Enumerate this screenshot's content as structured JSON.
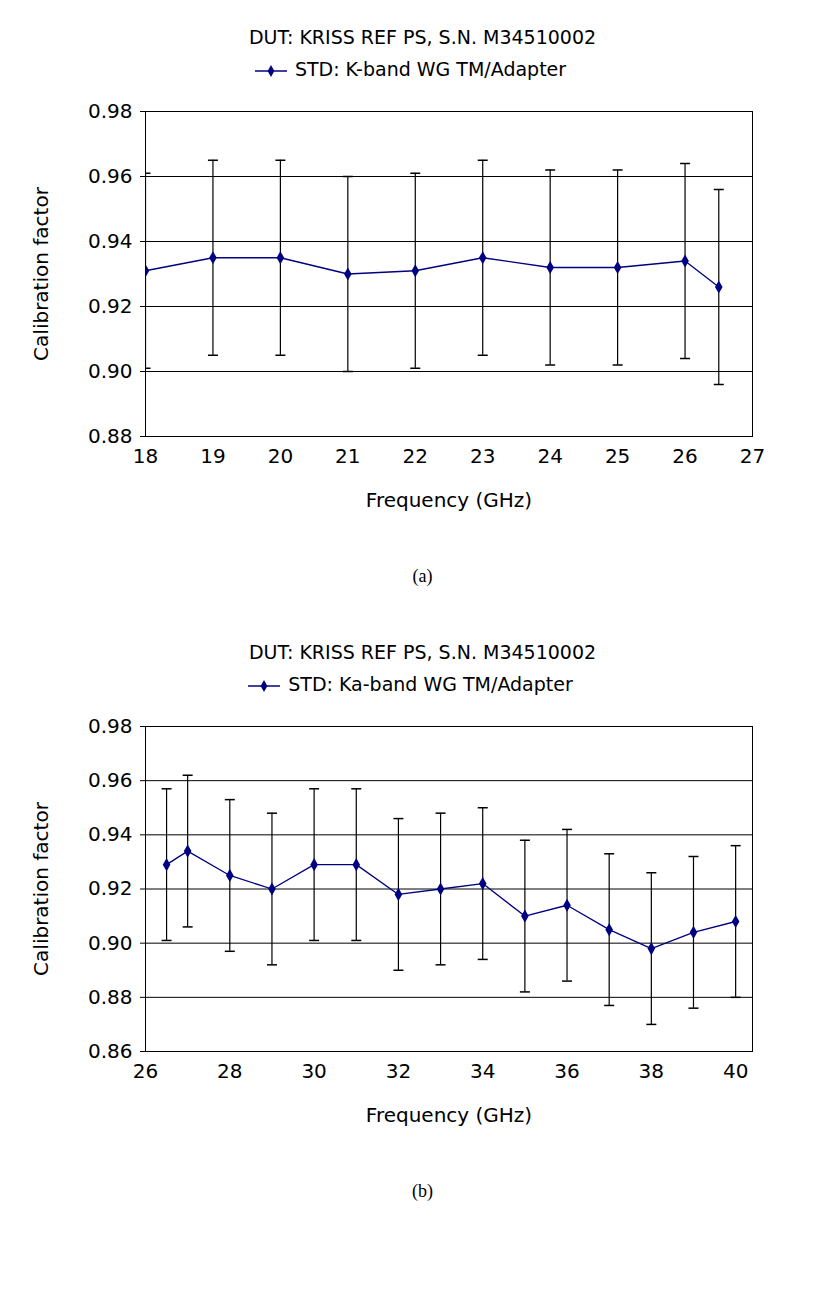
{
  "chart_data": [
    {
      "type": "line",
      "title": "DUT: KRISS REF PS, S.N. M34510002",
      "caption": "(a)",
      "x_label": "Frequency (GHz)",
      "y_label": "Calibration factor",
      "x": [
        18,
        19,
        20,
        21,
        22,
        23,
        24,
        25,
        26,
        26.5
      ],
      "series": [
        {
          "name": "STD: K-band WG TM/Adapter",
          "color": "#000080",
          "marker": "diamond",
          "values": [
            0.931,
            0.935,
            0.935,
            0.93,
            0.931,
            0.935,
            0.932,
            0.932,
            0.934,
            0.926
          ],
          "errors": [
            0.03,
            0.03,
            0.03,
            0.03,
            0.03,
            0.03,
            0.03,
            0.03,
            0.03,
            0.03
          ]
        }
      ],
      "xlim": [
        18,
        27
      ],
      "xticks": [
        18,
        19,
        20,
        21,
        22,
        23,
        24,
        25,
        26,
        27
      ],
      "ylim": [
        0.88,
        0.98
      ],
      "yticks": [
        0.88,
        {
          "value": 0.9,
          "label": "0.90"
        },
        0.92,
        0.94,
        0.96,
        0.98
      ],
      "grid": "y",
      "legend": "top"
    },
    {
      "type": "line",
      "title": "DUT: KRISS REF PS, S.N. M34510002",
      "caption": "(b)",
      "x_label": "Frequency (GHz)",
      "y_label": "Calibration factor",
      "x": [
        26.5,
        27,
        28,
        29,
        30,
        31,
        32,
        33,
        34,
        35,
        36,
        37,
        38,
        39,
        40
      ],
      "series": [
        {
          "name": "STD: Ka-band WG TM/Adapter",
          "color": "#000080",
          "marker": "diamond",
          "values": [
            0.929,
            0.934,
            0.925,
            0.92,
            0.929,
            0.929,
            0.918,
            0.92,
            0.922,
            0.91,
            0.914,
            0.905,
            0.898,
            0.904,
            0.908
          ],
          "errors": [
            0.028,
            0.028,
            0.028,
            0.028,
            0.028,
            0.028,
            0.028,
            0.028,
            0.028,
            0.028,
            0.028,
            0.028,
            0.028,
            0.028,
            0.028
          ]
        }
      ],
      "xlim": [
        26,
        40.4
      ],
      "xticks": [
        26,
        28,
        30,
        32,
        34,
        36,
        38,
        40
      ],
      "ylim": [
        0.86,
        0.98
      ],
      "yticks": [
        0.86,
        0.88,
        {
          "value": 0.9,
          "label": "0.90"
        },
        0.92,
        0.94,
        0.96,
        0.98
      ],
      "grid": "y",
      "legend": "top"
    }
  ]
}
